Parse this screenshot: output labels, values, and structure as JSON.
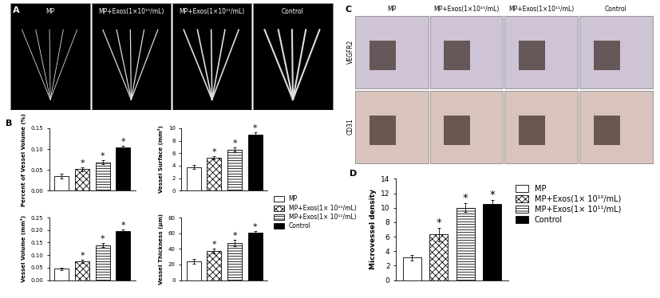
{
  "image_panels": [
    {
      "label": "A",
      "columns": [
        "MP",
        "MP+Exos(1×10¹⁰/mL)",
        "MP+Exos(1×10¹¹/mL)",
        "Control"
      ]
    },
    {
      "label": "C",
      "columns": [
        "MP",
        "MP+Exos(1×10¹⁰/mL)",
        "MP+Exos(1×10¹¹/mL)",
        "Control"
      ],
      "rows": [
        "VEGFR2",
        "CD31"
      ]
    }
  ],
  "chart_labels": [
    "B",
    "D"
  ],
  "chart_data": [
    {
      "type": "bar",
      "panel": "B",
      "ylabel": "Percent of Vessel Volume (%)",
      "categories": [
        "MP",
        "MP+Exos(1× 10¹⁰/mL)",
        "MP+Exos(1× 10¹¹/mL)",
        "Control"
      ],
      "values": [
        0.035,
        0.052,
        0.068,
        0.103
      ],
      "errors": [
        0.005,
        0.005,
        0.005,
        0.005
      ],
      "colors": [
        "#ffffff",
        "#ffffff",
        "#ffffff",
        "#000000"
      ],
      "annotations": [
        null,
        "*",
        "*",
        "*"
      ],
      "ylim": [
        0,
        0.15
      ],
      "yticks": [
        {
          "value": 0,
          "label": "0.00"
        },
        {
          "value": 0.05,
          "label": "0.05"
        },
        {
          "value": 0.1,
          "label": "0.10"
        },
        {
          "value": 0.15,
          "label": "0.15"
        }
      ],
      "tick_labels": "y"
    },
    {
      "type": "bar",
      "panel": "B",
      "ylabel": "Vessel Surface (mm²)",
      "categories": [
        "MP",
        "MP+Exos(1× 10¹⁰/mL)",
        "MP+Exos(1× 10¹¹/mL)",
        "Control"
      ],
      "values": [
        3.8,
        5.3,
        6.6,
        9.0
      ],
      "errors": [
        0.3,
        0.25,
        0.3,
        0.3
      ],
      "colors": [
        "#ffffff",
        "#ffffff",
        "#ffffff",
        "#000000"
      ],
      "annotations": [
        null,
        "*",
        "*",
        "*"
      ],
      "ylim": [
        0,
        10
      ],
      "yticks": [
        0,
        2,
        4,
        6,
        8,
        10
      ],
      "tick_labels": "y",
      "legend": "center left"
    },
    {
      "type": "bar",
      "panel": "B",
      "ylabel": "Vessel Volume (mm³)",
      "categories": [
        "MP",
        "MP+Exos(1× 10¹⁰/mL)",
        "MP+Exos(1× 10¹¹/mL)",
        "Control"
      ],
      "values": [
        0.045,
        0.075,
        0.14,
        0.195
      ],
      "errors": [
        0.005,
        0.006,
        0.008,
        0.007
      ],
      "colors": [
        "#ffffff",
        "#ffffff",
        "#ffffff",
        "#000000"
      ],
      "annotations": [
        null,
        "*",
        "*",
        "*"
      ],
      "ylim": [
        0,
        0.25
      ],
      "yticks": [
        {
          "value": 0,
          "label": "0.00"
        },
        {
          "value": 0.05,
          "label": "0.05"
        },
        {
          "value": 0.1,
          "label": "0.10"
        },
        {
          "value": 0.15,
          "label": "0.15"
        },
        {
          "value": 0.2,
          "label": "0.20"
        },
        {
          "value": 0.25,
          "label": "0.25"
        }
      ],
      "tick_labels": "y"
    },
    {
      "type": "bar",
      "panel": "B",
      "ylabel": "Vessel Thickness (μm)",
      "categories": [
        "MP",
        "MP+Exos(1× 10¹⁰/mL)",
        "MP+Exos(1× 10¹¹/mL)",
        "Control"
      ],
      "values": [
        24,
        37,
        47,
        61
      ],
      "errors": [
        3,
        3,
        4,
        2
      ],
      "colors": [
        "#ffffff",
        "#ffffff",
        "#ffffff",
        "#000000"
      ],
      "annotations": [
        null,
        "*",
        "*",
        "*"
      ],
      "ylim": [
        0,
        80
      ],
      "yticks": [
        0,
        20,
        40,
        60,
        80
      ],
      "tick_labels": "y"
    },
    {
      "type": "bar",
      "panel": "D",
      "ylabel": "Microvessel density",
      "categories": [
        "MP",
        "MP+Exos(1× 10¹⁰/mL)",
        "MP+Exos(1× 10¹¹/mL)",
        "Control"
      ],
      "values": [
        3.1,
        6.3,
        10.0,
        10.5
      ],
      "errors": [
        0.4,
        0.9,
        0.6,
        0.6
      ],
      "colors": [
        "#ffffff",
        "#ffffff",
        "#ffffff",
        "#000000"
      ],
      "annotations": [
        null,
        "*",
        "*",
        "*"
      ],
      "ylim": [
        0,
        14
      ],
      "yticks": [
        0,
        2,
        4,
        6,
        8,
        10,
        12,
        14
      ],
      "tick_labels": "y",
      "legend": "center left"
    }
  ]
}
